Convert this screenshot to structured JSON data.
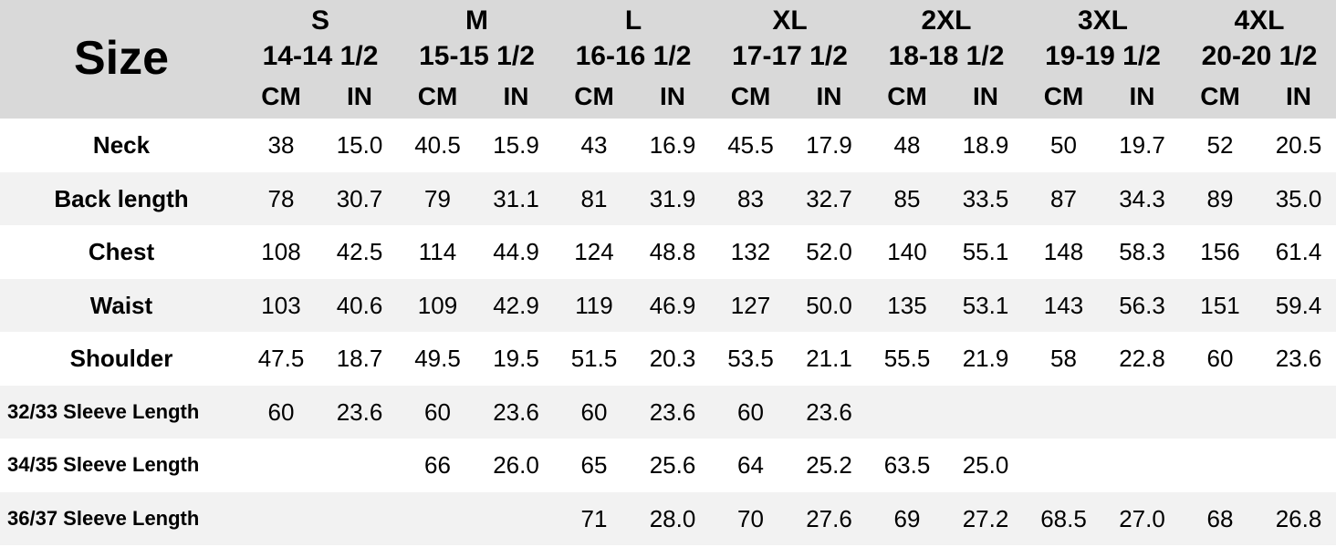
{
  "table": {
    "title": "Size",
    "sizes": [
      {
        "size": "S",
        "range": "14-14 1/2",
        "cm_label": "CM",
        "in_label": "IN"
      },
      {
        "size": "M",
        "range": "15-15 1/2",
        "cm_label": "CM",
        "in_label": "IN"
      },
      {
        "size": "L",
        "range": "16-16 1/2",
        "cm_label": "CM",
        "in_label": "IN"
      },
      {
        "size": "XL",
        "range": "17-17 1/2",
        "cm_label": "CM",
        "in_label": "IN"
      },
      {
        "size": "2XL",
        "range": "18-18 1/2",
        "cm_label": "CM",
        "in_label": "IN"
      },
      {
        "size": "3XL",
        "range": "19-19 1/2",
        "cm_label": "CM",
        "in_label": "IN"
      },
      {
        "size": "4XL",
        "range": "20-20 1/2",
        "cm_label": "CM",
        "in_label": "IN"
      }
    ],
    "rows": [
      {
        "label": "Neck",
        "values": [
          "38",
          "15.0",
          "40.5",
          "15.9",
          "43",
          "16.9",
          "45.5",
          "17.9",
          "48",
          "18.9",
          "50",
          "19.7",
          "52",
          "20.5"
        ]
      },
      {
        "label": "Back length",
        "values": [
          "78",
          "30.7",
          "79",
          "31.1",
          "81",
          "31.9",
          "83",
          "32.7",
          "85",
          "33.5",
          "87",
          "34.3",
          "89",
          "35.0"
        ]
      },
      {
        "label": "Chest",
        "values": [
          "108",
          "42.5",
          "114",
          "44.9",
          "124",
          "48.8",
          "132",
          "52.0",
          "140",
          "55.1",
          "148",
          "58.3",
          "156",
          "61.4"
        ]
      },
      {
        "label": "Waist",
        "values": [
          "103",
          "40.6",
          "109",
          "42.9",
          "119",
          "46.9",
          "127",
          "50.0",
          "135",
          "53.1",
          "143",
          "56.3",
          "151",
          "59.4"
        ]
      },
      {
        "label": "Shoulder",
        "values": [
          "47.5",
          "18.7",
          "49.5",
          "19.5",
          "51.5",
          "20.3",
          "53.5",
          "21.1",
          "55.5",
          "21.9",
          "58",
          "22.8",
          "60",
          "23.6"
        ]
      },
      {
        "label": "32/33  Sleeve Length",
        "values": [
          "60",
          "23.6",
          "60",
          "23.6",
          "60",
          "23.6",
          "60",
          "23.6",
          "",
          "",
          "",
          "",
          "",
          ""
        ]
      },
      {
        "label": "34/35  Sleeve Length",
        "values": [
          "",
          "",
          "66",
          "26.0",
          "65",
          "25.6",
          "64",
          "25.2",
          "63.5",
          "25.0",
          "",
          "",
          "",
          ""
        ]
      },
      {
        "label": "36/37 Sleeve Length",
        "values": [
          "",
          "",
          "",
          "",
          "71",
          "28.0",
          "70",
          "27.6",
          "69",
          "27.2",
          "68.5",
          "27.0",
          "68",
          "26.8"
        ]
      }
    ]
  }
}
